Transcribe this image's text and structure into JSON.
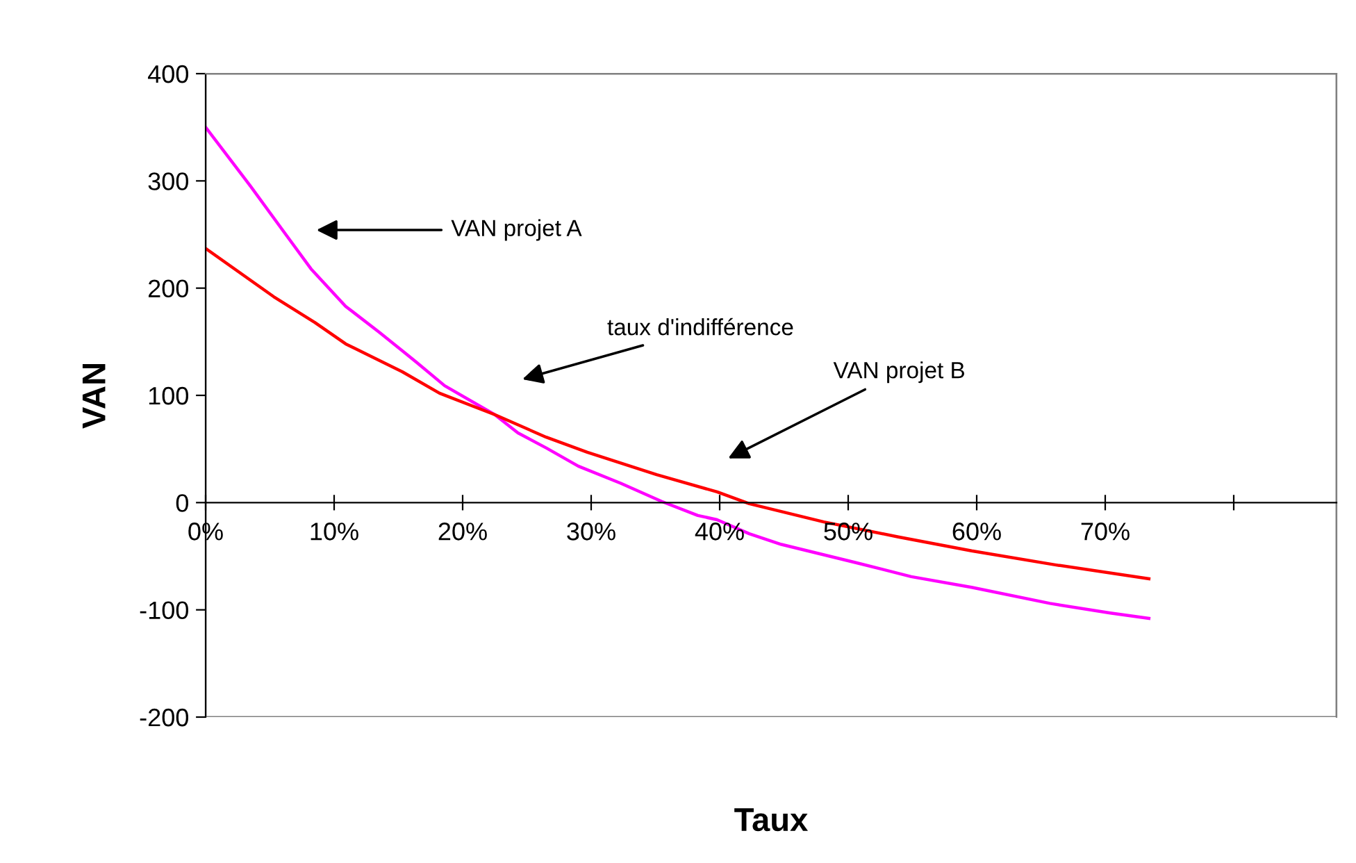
{
  "chart_data": {
    "type": "line",
    "xlabel": "Taux",
    "ylabel": "VAN",
    "xlim": [
      0,
      88
    ],
    "xticks": [
      {
        "value": 0,
        "label": "0%"
      },
      {
        "value": 10,
        "label": "10%"
      },
      {
        "value": 20,
        "label": "20%"
      },
      {
        "value": 30,
        "label": "30%"
      },
      {
        "value": 40,
        "label": "40%"
      },
      {
        "value": 50,
        "label": "50%"
      },
      {
        "value": 60,
        "label": "60%"
      },
      {
        "value": 70,
        "label": "70%"
      },
      {
        "value": 80,
        "label": null
      }
    ],
    "ylim": [
      -200,
      400
    ],
    "yticks": [
      -200,
      -100,
      0,
      100,
      200,
      300,
      400
    ],
    "grid": false,
    "marker": "none",
    "line_style": "solid",
    "series": [
      {
        "color": "#ff00ff",
        "x": [
          0,
          3.5,
          6.3,
          8.2,
          10.9,
          13.5,
          16.4,
          18.6,
          22.5,
          24.3,
          26.5,
          29,
          32.3,
          35.5,
          38.3,
          39.8,
          42.3,
          44.8,
          50.6,
          54.9,
          59.6,
          65.7,
          70.4,
          73.4
        ],
        "values": [
          350,
          295,
          249,
          218,
          183,
          159,
          131,
          109,
          82,
          65,
          51,
          34,
          18,
          1,
          -12,
          -16,
          -29,
          -39,
          -56,
          -69,
          -79,
          -94,
          -103,
          -108
        ]
      },
      {
        "color": "#ff0000",
        "x": [
          0,
          5.3,
          8.5,
          10.9,
          15.3,
          18.2,
          22.5,
          26.5,
          29.7,
          35.1,
          39.8,
          42.3,
          48.1,
          53.9,
          59.6,
          66.1,
          73.4
        ],
        "values": [
          237,
          192,
          168,
          148,
          122,
          102,
          82,
          61,
          47,
          26,
          10,
          -1,
          -18,
          -32,
          -45,
          -58,
          -71
        ]
      }
    ],
    "annotations": [
      "VAN projet A",
      "taux d'indifférence",
      "VAN projet B"
    ]
  }
}
